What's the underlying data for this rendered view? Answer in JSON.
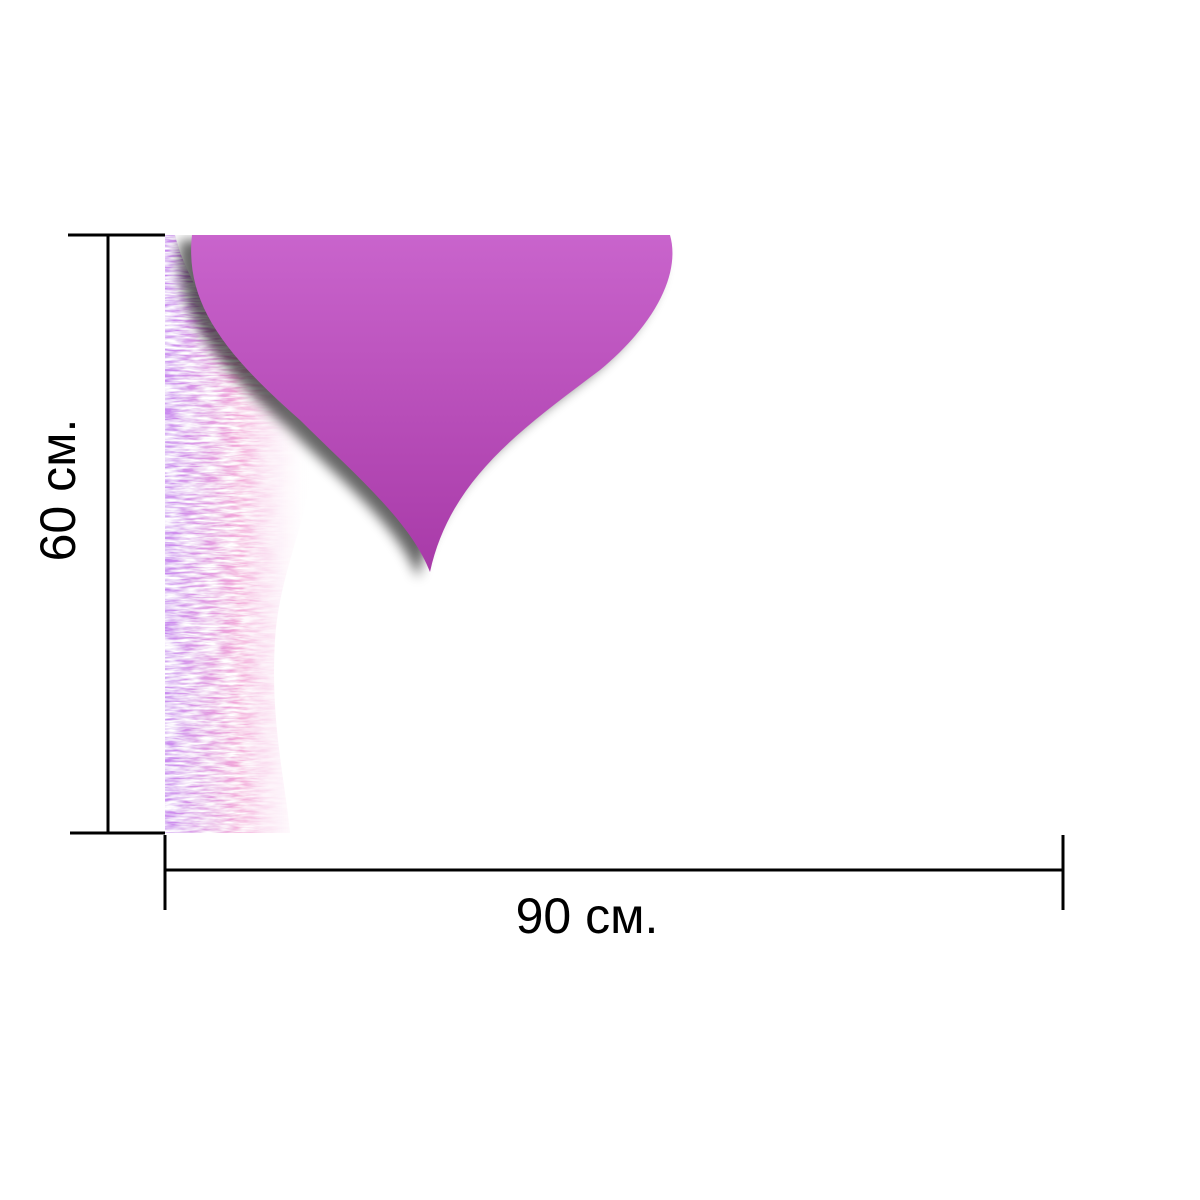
{
  "dimensions": {
    "height": {
      "label": "60 см."
    },
    "width": {
      "label": "90 см."
    }
  }
}
